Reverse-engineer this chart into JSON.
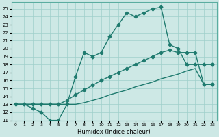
{
  "xlabel": "Humidex (Indice chaleur)",
  "bg_color": "#cde8e5",
  "line_color": "#1e7a6e",
  "xlim": [
    -0.5,
    23.5
  ],
  "ylim": [
    11,
    25.8
  ],
  "xticks": [
    0,
    1,
    2,
    3,
    4,
    5,
    6,
    7,
    8,
    9,
    10,
    11,
    12,
    13,
    14,
    15,
    16,
    17,
    18,
    19,
    20,
    21,
    22,
    23
  ],
  "yticks": [
    11,
    12,
    13,
    14,
    15,
    16,
    17,
    18,
    19,
    20,
    21,
    22,
    23,
    24,
    25
  ],
  "curve1_x": [
    0,
    1,
    2,
    3,
    4,
    5,
    6,
    7,
    8,
    9,
    10,
    11,
    12,
    13,
    14,
    15,
    16,
    17,
    18,
    19,
    20,
    21,
    22,
    23
  ],
  "curve1_y": [
    13,
    13,
    12.5,
    12,
    11,
    11,
    13,
    16.5,
    19.5,
    19,
    19.5,
    21.5,
    23.0,
    24.5,
    24.0,
    24.5,
    25.0,
    25.2,
    20.5,
    20.0,
    18.0,
    18.0,
    18.0,
    18.0
  ],
  "curve2_x": [
    0,
    2,
    3,
    4,
    5,
    6,
    7,
    8,
    9,
    10,
    11,
    12,
    13,
    14,
    15,
    16,
    17,
    18,
    19,
    20,
    21,
    22,
    23
  ],
  "curve2_y": [
    13,
    13,
    13,
    13,
    13,
    13.5,
    14.2,
    14.8,
    15.4,
    16.0,
    16.5,
    17.0,
    17.5,
    18.0,
    18.5,
    19.0,
    19.5,
    19.8,
    19.5,
    19.5,
    19.5,
    15.5,
    15.5
  ],
  "curve3_x": [
    0,
    2,
    3,
    4,
    5,
    6,
    7,
    8,
    9,
    10,
    11,
    12,
    13,
    14,
    15,
    16,
    17,
    18,
    19,
    20,
    21,
    22,
    23
  ],
  "curve3_y": [
    13,
    13,
    13,
    13,
    13,
    13,
    13,
    13.2,
    13.5,
    13.8,
    14.2,
    14.5,
    14.8,
    15.2,
    15.5,
    15.8,
    16.2,
    16.5,
    16.8,
    17.2,
    17.5,
    15.5,
    15.5
  ]
}
